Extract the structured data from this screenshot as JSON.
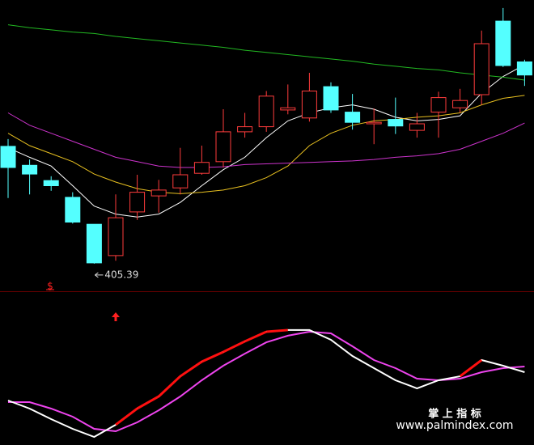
{
  "chart_data": [
    {
      "type": "candlestick",
      "open": [
        421.5,
        418.9,
        416.8,
        414.5,
        410.8,
        406.5,
        412.5,
        414.7,
        415.8,
        417.8,
        419.4,
        423.5,
        424.2,
        426.5,
        425.4,
        429.7,
        426.2,
        424.6,
        425.2,
        423.7,
        426.2,
        426.8,
        428.6,
        438.7,
        433.1
      ],
      "high": [
        422.5,
        419.7,
        417.4,
        415.2,
        410.8,
        414.9,
        417.6,
        416.9,
        421.3,
        421.6,
        426.6,
        426.1,
        429.1,
        430.0,
        431.6,
        430.3,
        428.7,
        426.7,
        428.2,
        426.1,
        429.0,
        429.4,
        437.4,
        440.5,
        433.4
      ],
      "low": [
        414.4,
        414.9,
        415.4,
        410.9,
        405.39,
        405.8,
        411.4,
        412.4,
        414.9,
        417.6,
        418.6,
        422.7,
        423.5,
        425.9,
        424.9,
        426.1,
        423.8,
        421.8,
        423.2,
        422.7,
        422.7,
        426.1,
        427.2,
        432.4,
        429.8
      ],
      "close": [
        418.6,
        417.7,
        416.1,
        411.1,
        405.5,
        411.7,
        415.2,
        415.5,
        417.6,
        419.3,
        423.5,
        424.2,
        428.4,
        426.8,
        429.1,
        426.5,
        424.8,
        424.8,
        424.3,
        424.6,
        428.2,
        427.8,
        435.6,
        432.6,
        431.3
      ],
      "up_color": "#ff3c3c",
      "down_color": "#54ffff",
      "low_label_index": 4,
      "series": [
        {
          "color": "#ffffff",
          "values": [
            421.3,
            420.0,
            418.8,
            416.1,
            413.3,
            412.2,
            411.8,
            412.2,
            413.8,
            416.1,
            418.3,
            420.0,
            422.7,
            425.0,
            426.1,
            426.8,
            427.2,
            426.6,
            425.5,
            425.0,
            425.2,
            425.7,
            428.8,
            431.1,
            432.7
          ]
        },
        {
          "color": "#e8c020",
          "values": [
            423.3,
            421.6,
            420.5,
            419.4,
            417.7,
            416.6,
            415.7,
            415.2,
            415.0,
            415.2,
            415.5,
            416.1,
            417.2,
            418.8,
            421.6,
            423.3,
            424.4,
            425.0,
            425.2,
            425.5,
            425.7,
            426.1,
            427.2,
            428.1,
            428.5
          ]
        },
        {
          "color": "#cc33cc",
          "values": [
            426.1,
            424.4,
            423.3,
            422.2,
            421.1,
            420.0,
            419.4,
            418.8,
            418.6,
            418.6,
            418.7,
            419.0,
            419.1,
            419.2,
            419.3,
            419.4,
            419.5,
            419.7,
            420.0,
            420.2,
            420.5,
            421.1,
            422.2,
            423.3,
            424.7
          ]
        },
        {
          "color": "#22b822",
          "values": [
            438.2,
            437.8,
            437.5,
            437.2,
            437.0,
            436.6,
            436.3,
            436.0,
            435.7,
            435.4,
            435.1,
            434.7,
            434.4,
            434.1,
            433.8,
            433.5,
            433.2,
            432.8,
            432.5,
            432.2,
            432.0,
            431.6,
            431.3,
            431.0,
            430.6
          ]
        }
      ],
      "ylim": [
        401.6,
        441.6
      ],
      "marker": "$"
    },
    {
      "type": "line",
      "series": [
        {
          "color": "#ffffff",
          "values": [
            35.7,
            28.6,
            19.3,
            10.7,
            3.6,
            14.3,
            28.6,
            39.3,
            57.1,
            70,
            78.6,
            87.9,
            96.4,
            97.9,
            97.9,
            89.3,
            75,
            64.3,
            53.6,
            46.4,
            53.6,
            57.1,
            71.4,
            66.4,
            60.7
          ]
        },
        {
          "color": "#ee44ee",
          "values": [
            34.3,
            34.3,
            28.6,
            21.4,
            10.7,
            8.6,
            16.4,
            27.1,
            39.3,
            53.6,
            66.4,
            77.1,
            87.1,
            92.9,
            96.4,
            95,
            83.6,
            71.4,
            64.3,
            55,
            53.6,
            55,
            60.7,
            64.3,
            65.7
          ]
        }
      ],
      "highlight_color": "#ff1010",
      "ylim": [
        0,
        100
      ]
    }
  ],
  "watermark": {
    "title": "掌 上 指 标",
    "url": "www.palmindex.com"
  }
}
